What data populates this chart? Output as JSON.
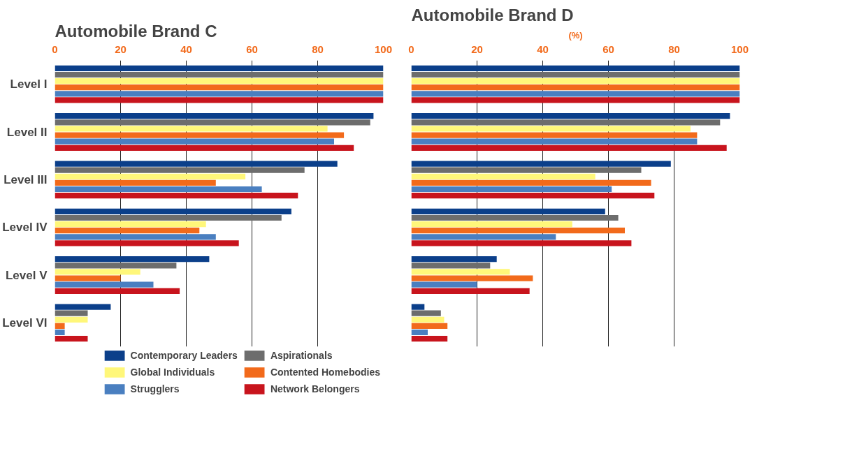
{
  "chart_data": [
    {
      "type": "bar",
      "orientation": "horizontal",
      "title": "Automobile Brand C",
      "categories": [
        "Level I",
        "Level II",
        "Level III",
        "Level IV",
        "Level V",
        "Level VI"
      ],
      "xlim": [
        0,
        100
      ],
      "xticks": [
        0,
        20,
        40,
        60,
        80,
        100
      ],
      "grid": "x",
      "legend": "bottom",
      "series": [
        {
          "name": "Contemporary Leaders",
          "color": "#0b3f8a",
          "values": [
            100,
            97,
            86,
            72,
            47,
            17
          ]
        },
        {
          "name": "Aspirationals",
          "color": "#6d6d6d",
          "values": [
            100,
            96,
            76,
            69,
            37,
            10
          ]
        },
        {
          "name": "Global Individuals",
          "color": "#fff77a",
          "values": [
            100,
            83,
            58,
            46,
            26,
            10
          ]
        },
        {
          "name": "Contented Homebodies",
          "color": "#f26a1b",
          "values": [
            100,
            88,
            49,
            44,
            20,
            3
          ]
        },
        {
          "name": "Strugglers",
          "color": "#4a7fc0",
          "values": [
            100,
            85,
            63,
            49,
            30,
            3
          ]
        },
        {
          "name": "Network Belongers",
          "color": "#c8141d",
          "values": [
            100,
            91,
            74,
            56,
            38,
            10
          ]
        }
      ]
    },
    {
      "type": "bar",
      "orientation": "horizontal",
      "title": "Automobile Brand D",
      "xlabel": "(%)",
      "categories": [
        null,
        null,
        null,
        null,
        null,
        null
      ],
      "xlim": [
        0,
        100
      ],
      "xticks": [
        0,
        20,
        40,
        60,
        80,
        100
      ],
      "grid": "x",
      "series": [
        {
          "color": "#0b3f8a",
          "values": [
            100,
            97,
            79,
            59,
            26,
            4
          ]
        },
        {
          "color": "#6d6d6d",
          "values": [
            100,
            94,
            70,
            63,
            24,
            9
          ]
        },
        {
          "color": "#fff77a",
          "values": [
            100,
            85,
            56,
            49,
            30,
            10
          ]
        },
        {
          "color": "#f26a1b",
          "values": [
            100,
            87,
            73,
            65,
            37,
            11
          ]
        },
        {
          "color": "#4a7fc0",
          "values": [
            100,
            87,
            61,
            44,
            20,
            5
          ]
        },
        {
          "color": "#c8141d",
          "values": [
            100,
            96,
            74,
            67,
            36,
            11
          ]
        }
      ]
    }
  ]
}
